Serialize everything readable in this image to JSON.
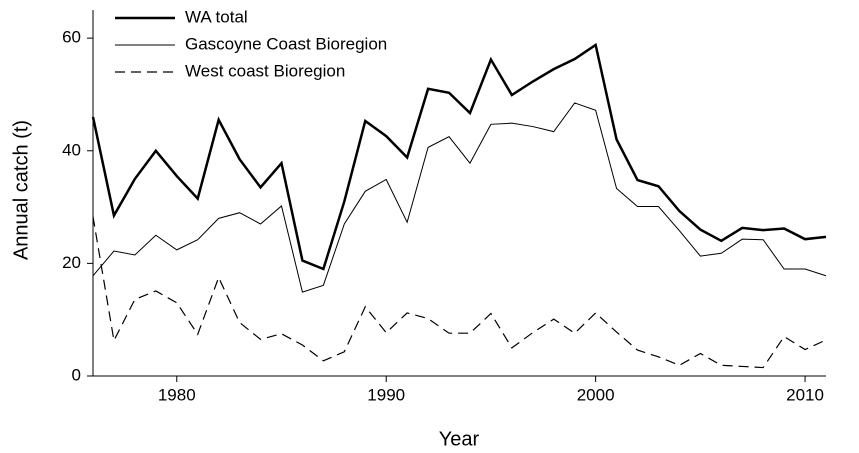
{
  "chart_data": {
    "type": "line",
    "x_label": "Year",
    "y_label": "Annual catch (t)",
    "x": [
      1976,
      1977,
      1978,
      1979,
      1980,
      1981,
      1982,
      1983,
      1984,
      1985,
      1986,
      1987,
      1988,
      1989,
      1990,
      1991,
      1992,
      1993,
      1994,
      1995,
      1996,
      1997,
      1998,
      1999,
      2000,
      2001,
      2002,
      2003,
      2004,
      2005,
      2006,
      2007,
      2008,
      2009,
      2010,
      2011
    ],
    "xlim": [
      1976,
      2011
    ],
    "xticks": [
      1980,
      1990,
      2000,
      2010
    ],
    "ylim": [
      0,
      65
    ],
    "yticks": [
      0,
      20,
      40,
      60
    ],
    "legend": "upper left",
    "series": [
      {
        "name": "WA total",
        "color": "#000000",
        "width": 2.5,
        "dash": "none",
        "values": [
          46,
          28.5,
          35,
          40,
          35.5,
          31.5,
          45.5,
          38.5,
          33.5,
          37.8,
          20.5,
          19,
          31,
          45.3,
          42.6,
          38.8,
          51,
          50.3,
          46.7,
          56.2,
          49.9,
          52.3,
          54.5,
          56.3,
          58.8,
          42,
          34.8,
          33.7,
          29.3,
          26,
          24,
          26.3,
          25.9,
          26.2,
          24.3,
          24.7
        ]
      },
      {
        "name": "Gascoyne Coast Bioregion",
        "color": "#000000",
        "width": 1,
        "dash": "none",
        "values": [
          17.8,
          22.2,
          21.5,
          25,
          22.4,
          24.2,
          28,
          29,
          27,
          30.2,
          14.9,
          16.1,
          27,
          32.8,
          34.9,
          27.3,
          40.6,
          42.5,
          37.8,
          44.7,
          44.9,
          44.3,
          43.4,
          48.5,
          47.2,
          33.3,
          30.1,
          30.1,
          25.8,
          21.3,
          21.8,
          24.3,
          24.2,
          19,
          19,
          17.8
        ]
      },
      {
        "name": "West coast Bioregion",
        "color": "#000000",
        "width": 1.2,
        "dash": "10,6",
        "values": [
          28.3,
          6.3,
          13.6,
          15.1,
          13,
          7.4,
          17.5,
          9.5,
          6.5,
          7.5,
          5.5,
          2.7,
          4.3,
          12.3,
          7.7,
          11.2,
          10.2,
          7.6,
          7.6,
          11.1,
          5,
          7.7,
          10.1,
          7.6,
          11.2,
          7.8,
          4.6,
          3.4,
          1.9,
          4,
          1.9,
          1.7,
          1.5,
          7,
          4.7,
          6.4
        ]
      }
    ]
  }
}
